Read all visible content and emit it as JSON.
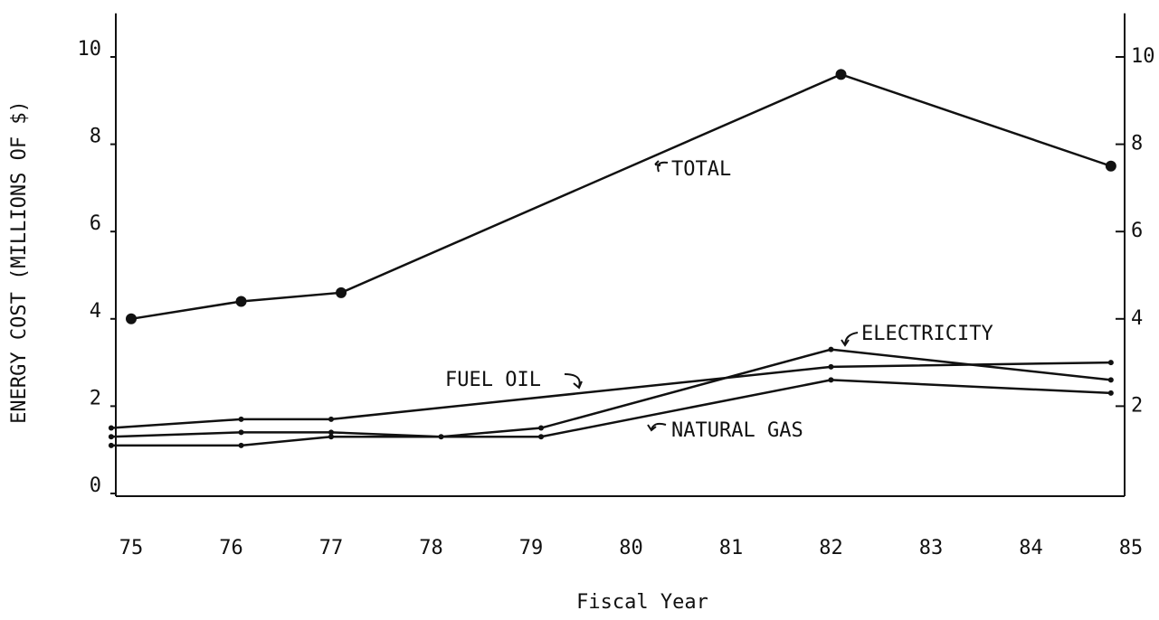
{
  "chart_data": {
    "type": "line",
    "ylabel": "ENERGY COST (MILLIONS OF $)",
    "xlabel": "Fiscal Year",
    "xlim": [
      74.8,
      85.1
    ],
    "xticks": [
      75,
      76,
      77,
      78,
      79,
      80,
      81,
      82,
      83,
      84,
      85
    ],
    "ylim": [
      0,
      11
    ],
    "yticks": [
      0,
      2,
      4,
      6,
      8,
      10
    ],
    "y2lim": [
      0,
      11
    ],
    "y2ticks": [
      2,
      4,
      6,
      8,
      10
    ],
    "series": [
      {
        "name": "TOTAL",
        "color": "#111111",
        "x": [
          75,
          76.1,
          77.1,
          82.1,
          84.8
        ],
        "values": [
          4.0,
          4.4,
          4.6,
          9.6,
          7.5
        ]
      },
      {
        "name": "ELECTRICITY",
        "color": "#111111",
        "x": [
          74.8,
          76.1,
          77.0,
          78.1,
          79.1,
          82.0,
          84.8
        ],
        "values": [
          1.3,
          1.4,
          1.4,
          1.3,
          1.5,
          3.3,
          2.6
        ]
      },
      {
        "name": "FUEL OIL",
        "color": "#111111",
        "x": [
          74.8,
          76.1,
          77.0,
          82.0,
          84.8
        ],
        "values": [
          1.5,
          1.7,
          1.7,
          2.9,
          3.0
        ]
      },
      {
        "name": "NATURAL GAS",
        "color": "#111111",
        "x": [
          74.8,
          76.1,
          77.0,
          79.1,
          82.0,
          84.8
        ],
        "values": [
          1.1,
          1.1,
          1.3,
          1.3,
          2.6,
          2.3
        ]
      }
    ]
  }
}
